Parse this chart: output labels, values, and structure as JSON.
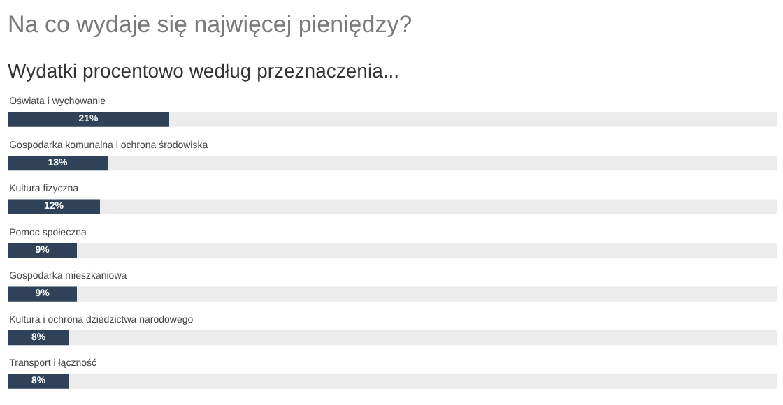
{
  "chart_data": {
    "type": "bar",
    "orientation": "horizontal",
    "title": "Na co wydaje się najwięcej pieniędzy?",
    "subtitle": "Wydatki procentowo według przeznaczenia...",
    "categories": [
      "Oświata i wychowanie",
      "Gospodarka komunalna i ochrona środowiska",
      "Kultura fizyczna",
      "Pomoc społeczna",
      "Gospodarka mieszkaniowa",
      "Kultura i ochrona dziedzictwa narodowego",
      "Transport i łączność"
    ],
    "values": [
      21,
      13,
      12,
      9,
      9,
      8,
      8
    ],
    "value_labels": [
      "21%",
      "13%",
      "12%",
      "9%",
      "9%",
      "8%",
      "8%"
    ],
    "color": "#2f4257",
    "xlim": [
      0,
      100
    ],
    "tick_labels": false,
    "grid": false
  }
}
